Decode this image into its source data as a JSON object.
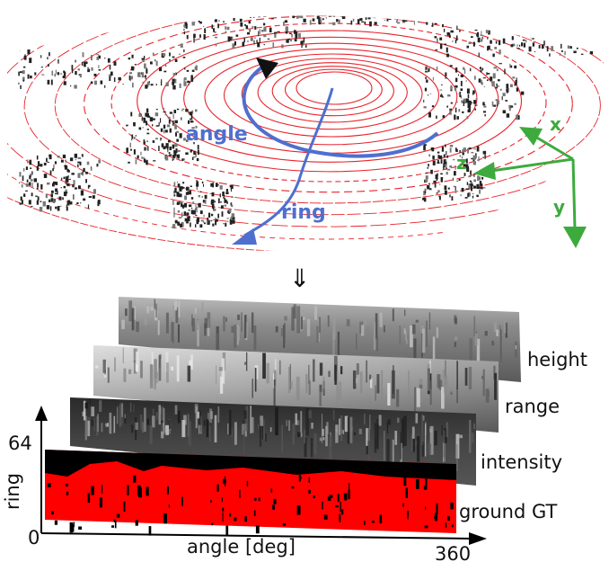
{
  "point_cloud": {
    "labels": {
      "angle": "angle",
      "ring": "ring"
    },
    "axes": {
      "x": "x",
      "y": "y",
      "z": "z"
    }
  },
  "arrow_symbol": "⇓",
  "image_stack": {
    "layers": [
      "height",
      "range",
      "intensity",
      "ground GT"
    ]
  },
  "axes_2d": {
    "y_label": "ring",
    "y_max": "64",
    "origin": "0",
    "x_label": "angle [deg]",
    "x_max": "360"
  },
  "colors": {
    "scan_lines": "#e8232b",
    "blue_annotation": "#4f6fcf",
    "green_axes": "#3daa3d",
    "ground_red": "#ff0000"
  }
}
